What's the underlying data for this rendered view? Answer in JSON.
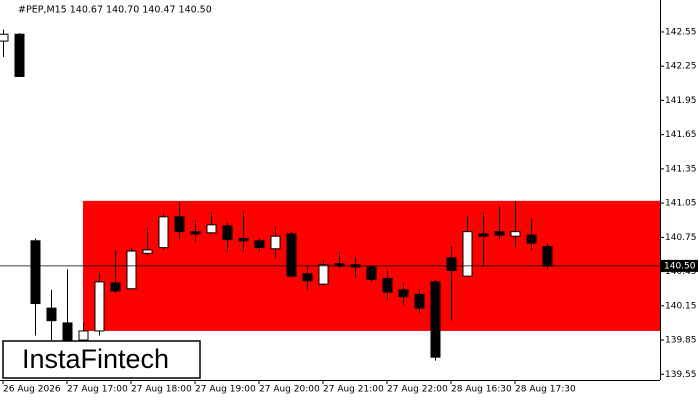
{
  "chart_data": {
    "type": "candlestick",
    "title": "#PEP,M15  140.67 140.70 140.47 140.50",
    "categories": [
      "26 Aug 2026",
      null,
      null,
      null,
      "27 Aug 17:00",
      null,
      null,
      null,
      "27 Aug 18:00",
      null,
      null,
      null,
      "27 Aug 19:00",
      null,
      null,
      null,
      "27 Aug 20:00",
      null,
      null,
      null,
      "27 Aug 21:00",
      null,
      null,
      null,
      "27 Aug 22:00",
      null,
      null,
      null,
      "28 Aug 16:30",
      null,
      null,
      null,
      "28 Aug 17:30",
      null,
      null
    ],
    "open": [
      142.47,
      142.53,
      140.72,
      140.13,
      140.0,
      139.85,
      139.93,
      140.35,
      140.3,
      140.61,
      140.66,
      140.93,
      140.8,
      140.79,
      140.85,
      140.74,
      140.72,
      140.65,
      140.78,
      140.43,
      140.34,
      140.52,
      140.51,
      140.49,
      140.39,
      140.29,
      140.25,
      140.36,
      140.57,
      140.41,
      140.78,
      140.8,
      140.76,
      140.77,
      140.67
    ],
    "high": [
      142.57,
      142.54,
      140.74,
      140.29,
      140.47,
      140.0,
      140.44,
      140.64,
      140.66,
      140.83,
      140.96,
      141.06,
      140.9,
      140.97,
      140.88,
      140.98,
      140.74,
      140.84,
      140.8,
      140.49,
      140.55,
      140.62,
      140.58,
      140.51,
      140.46,
      140.35,
      140.29,
      140.38,
      140.67,
      140.94,
      140.97,
      141.02,
      141.07,
      140.92,
      140.7
    ],
    "low": [
      142.33,
      142.16,
      139.89,
      139.85,
      139.75,
      139.7,
      139.89,
      140.26,
      140.29,
      140.59,
      140.64,
      140.73,
      140.71,
      140.78,
      140.62,
      140.62,
      140.62,
      140.57,
      140.4,
      140.29,
      140.33,
      140.48,
      140.4,
      140.36,
      140.2,
      140.16,
      140.09,
      139.67,
      140.02,
      140.41,
      140.5,
      140.73,
      140.66,
      140.64,
      140.47
    ],
    "close": [
      142.53,
      142.16,
      140.17,
      140.02,
      139.8,
      139.93,
      140.36,
      140.28,
      140.63,
      140.64,
      140.93,
      140.8,
      140.78,
      140.86,
      140.73,
      140.72,
      140.66,
      140.76,
      140.41,
      140.37,
      140.51,
      140.5,
      140.49,
      140.38,
      140.27,
      140.23,
      140.13,
      139.7,
      140.46,
      140.8,
      140.76,
      140.77,
      140.8,
      140.7,
      140.5
    ],
    "ylim": [
      139.5,
      142.83
    ],
    "yticks": [
      142.55,
      142.25,
      141.95,
      141.65,
      141.35,
      141.05,
      140.75,
      140.45,
      140.15,
      139.85,
      139.55
    ],
    "current_price": {
      "value": 140.5,
      "label": "140.50"
    },
    "zone": {
      "high": 141.07,
      "low": 139.93,
      "start": 5,
      "color": "#ff0000"
    },
    "logo": "InstaFintech"
  }
}
